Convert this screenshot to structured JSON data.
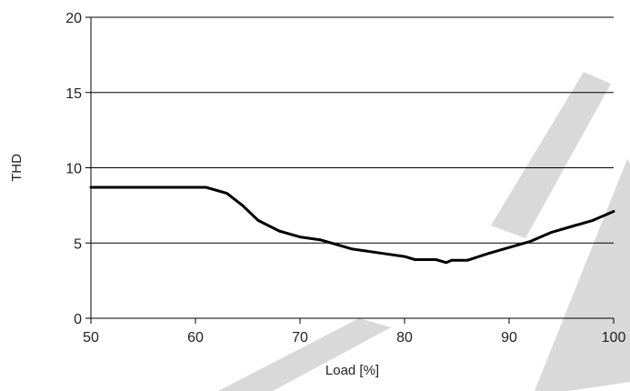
{
  "chart_data": {
    "type": "line",
    "xlabel": "Load [%]",
    "ylabel": "THD",
    "xlim": [
      50,
      100
    ],
    "ylim": [
      0,
      20
    ],
    "x_ticks": [
      50,
      60,
      70,
      80,
      90,
      100
    ],
    "y_ticks": [
      0,
      5,
      10,
      15,
      20
    ],
    "grid": "horizontal",
    "series": [
      {
        "color": "#000000",
        "x": [
          50,
          55,
          60,
          61,
          63,
          64.5,
          66,
          68,
          70,
          72,
          75,
          78,
          80,
          81,
          82,
          83,
          84,
          84.5,
          85,
          86,
          88,
          90,
          92,
          94,
          96,
          98,
          100
        ],
        "y": [
          8.7,
          8.7,
          8.7,
          8.7,
          8.3,
          7.5,
          6.5,
          5.8,
          5.4,
          5.2,
          4.6,
          4.3,
          4.1,
          3.9,
          3.9,
          3.9,
          3.7,
          3.85,
          3.85,
          3.85,
          4.3,
          4.7,
          5.1,
          5.7,
          6.1,
          6.5,
          7.1
        ]
      }
    ]
  },
  "watermark": "SE"
}
